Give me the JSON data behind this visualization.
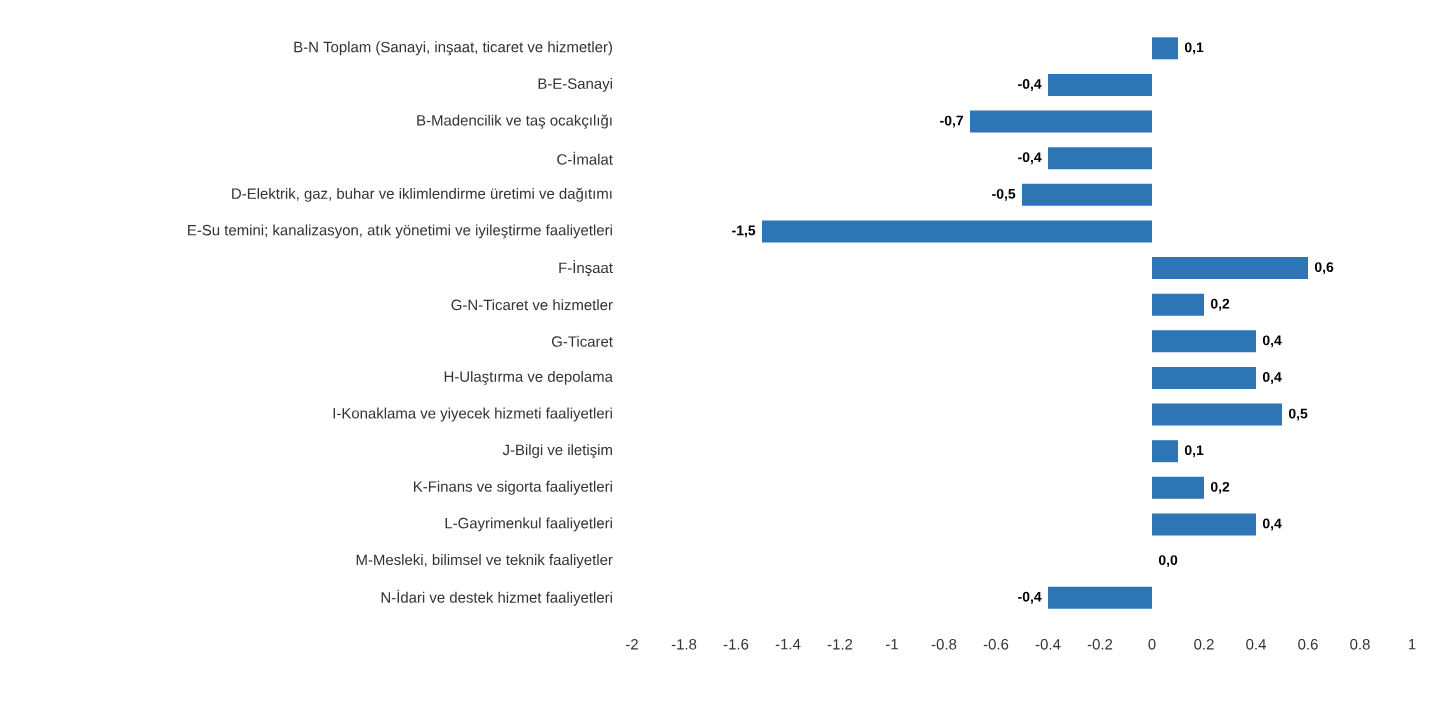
{
  "chart_data": {
    "type": "bar",
    "orientation": "horizontal",
    "color": "#2e75b6",
    "categories": [
      "B-N Toplam (Sanayi, inşaat, ticaret ve hizmetler)",
      "B-E-Sanayi",
      "B-Madencilik ve taş ocakçılığı",
      "C-İmalat",
      "D-Elektrik, gaz, buhar ve iklimlendirme üretimi ve dağıtımı",
      "E-Su temini; kanalizasyon, atık yönetimi ve iyileştirme faaliyetleri",
      "F-İnşaat",
      "G-N-Ticaret ve hizmetler",
      "G-Ticaret",
      "H-Ulaştırma ve depolama",
      "I-Konaklama ve yiyecek hizmeti faaliyetleri",
      "J-Bilgi ve iletişim",
      "K-Finans ve sigorta faaliyetleri",
      "L-Gayrimenkul faaliyetleri",
      "M-Mesleki, bilimsel ve teknik faaliyetler",
      "N-İdari ve destek hizmet faaliyetleri"
    ],
    "values": [
      0.1,
      -0.4,
      -0.7,
      -0.4,
      -0.5,
      -1.5,
      0.6,
      0.2,
      0.4,
      0.4,
      0.5,
      0.1,
      0.2,
      0.4,
      0.0,
      -0.4
    ],
    "value_labels": [
      "0,1",
      "-0,4",
      "-0,7",
      "-0,4",
      "-0,5",
      "-1,5",
      "0,6",
      "0,2",
      "0,4",
      "0,4",
      "0,5",
      "0,1",
      "0,2",
      "0,4",
      "0,0",
      "-0,4"
    ],
    "xlim": [
      -2,
      1
    ],
    "xticks": [
      -2,
      -1.8,
      -1.6,
      -1.4,
      -1.2,
      -1,
      -0.8,
      -0.6,
      -0.4,
      -0.2,
      0,
      0.2,
      0.4,
      0.6,
      0.8,
      1
    ],
    "grid": false
  }
}
